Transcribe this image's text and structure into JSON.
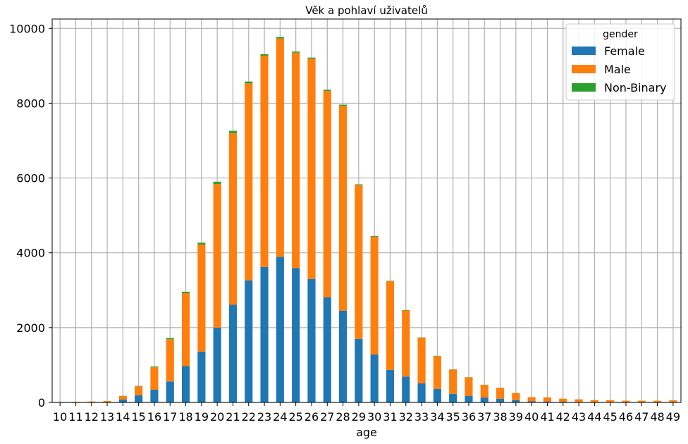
{
  "chart_data": {
    "type": "bar",
    "stacked": true,
    "title": "Věk a pohlaví uživatelů",
    "xlabel": "age",
    "ylabel": "",
    "ylim": [
      0,
      10250
    ],
    "yticks": [
      0,
      2000,
      4000,
      6000,
      8000,
      10000
    ],
    "grid": true,
    "legend": {
      "title": "gender",
      "placement": "top-right"
    },
    "categories": [
      "10",
      "11",
      "12",
      "13",
      "14",
      "15",
      "16",
      "17",
      "18",
      "19",
      "20",
      "21",
      "22",
      "23",
      "24",
      "25",
      "26",
      "27",
      "28",
      "29",
      "30",
      "31",
      "32",
      "33",
      "34",
      "35",
      "36",
      "37",
      "38",
      "39",
      "40",
      "41",
      "42",
      "43",
      "44",
      "45",
      "46",
      "47",
      "48",
      "49"
    ],
    "series": [
      {
        "name": "Female",
        "color": "#1f77b4",
        "values": [
          3,
          2,
          4,
          8,
          80,
          190,
          340,
          560,
          970,
          1360,
          2000,
          2610,
          3260,
          3620,
          3890,
          3590,
          3300,
          2810,
          2450,
          1700,
          1280,
          870,
          690,
          510,
          360,
          230,
          170,
          130,
          100,
          60,
          30,
          25,
          20,
          12,
          10,
          8,
          6,
          6,
          5,
          5
        ]
      },
      {
        "name": "Male",
        "color": "#ff7f0e",
        "values": [
          8,
          15,
          20,
          30,
          90,
          240,
          600,
          1130,
          1950,
          2860,
          3840,
          4590,
          5270,
          5650,
          5840,
          5760,
          5890,
          5520,
          5480,
          4110,
          3150,
          2370,
          1770,
          1220,
          880,
          650,
          500,
          340,
          290,
          190,
          110,
          110,
          80,
          70,
          50,
          50,
          40,
          40,
          40,
          50
        ]
      },
      {
        "name": "Non-Binary",
        "color": "#2ca02c",
        "values": [
          0,
          0,
          0,
          0,
          5,
          10,
          20,
          30,
          40,
          50,
          60,
          60,
          50,
          40,
          40,
          30,
          30,
          30,
          30,
          20,
          20,
          10,
          10,
          8,
          6,
          4,
          4,
          3,
          2,
          2,
          1,
          1,
          1,
          1,
          1,
          1,
          1,
          1,
          1,
          1
        ]
      }
    ]
  }
}
